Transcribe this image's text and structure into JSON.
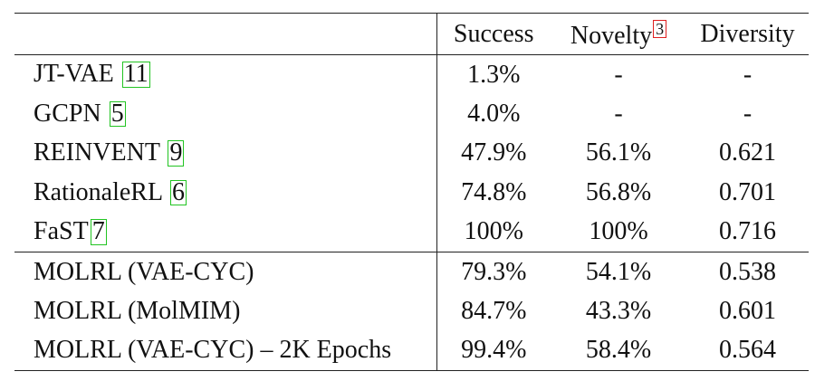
{
  "table": {
    "headers": {
      "method": "",
      "success": "Success",
      "novelty": "Novelty",
      "novelty_footnote": "3",
      "diversity": "Diversity"
    },
    "baselines": [
      {
        "name": "JT-VAE ",
        "cite": "11",
        "success": "1.3%",
        "novelty": "-",
        "diversity": "-"
      },
      {
        "name": "GCPN ",
        "cite": "5",
        "success": "4.0%",
        "novelty": "-",
        "diversity": "-"
      },
      {
        "name": "REINVENT ",
        "cite": "9",
        "success": "47.9%",
        "novelty": "56.1%",
        "diversity": "0.621"
      },
      {
        "name": "RationaleRL ",
        "cite": "6",
        "success": "74.8%",
        "novelty": "56.8%",
        "diversity": "0.701"
      },
      {
        "name": "FaST",
        "cite": "7",
        "success": "100%",
        "novelty": "100%",
        "diversity": "0.716"
      }
    ],
    "ours": [
      {
        "name": "MOLRL (VAE-CYC)",
        "success": "79.3%",
        "novelty": "54.1%",
        "diversity": "0.538"
      },
      {
        "name": "MOLRL (MolMIM)",
        "success": "84.7%",
        "novelty": "43.3%",
        "diversity": "0.601"
      },
      {
        "name": "MOLRL (VAE-CYC) – 2K Epochs",
        "success": "99.4%",
        "novelty": "58.4%",
        "diversity": "0.564"
      }
    ],
    "colors": {
      "citation_box": "#22c422",
      "footnote_box": "#e02020",
      "rule": "#222222"
    }
  }
}
